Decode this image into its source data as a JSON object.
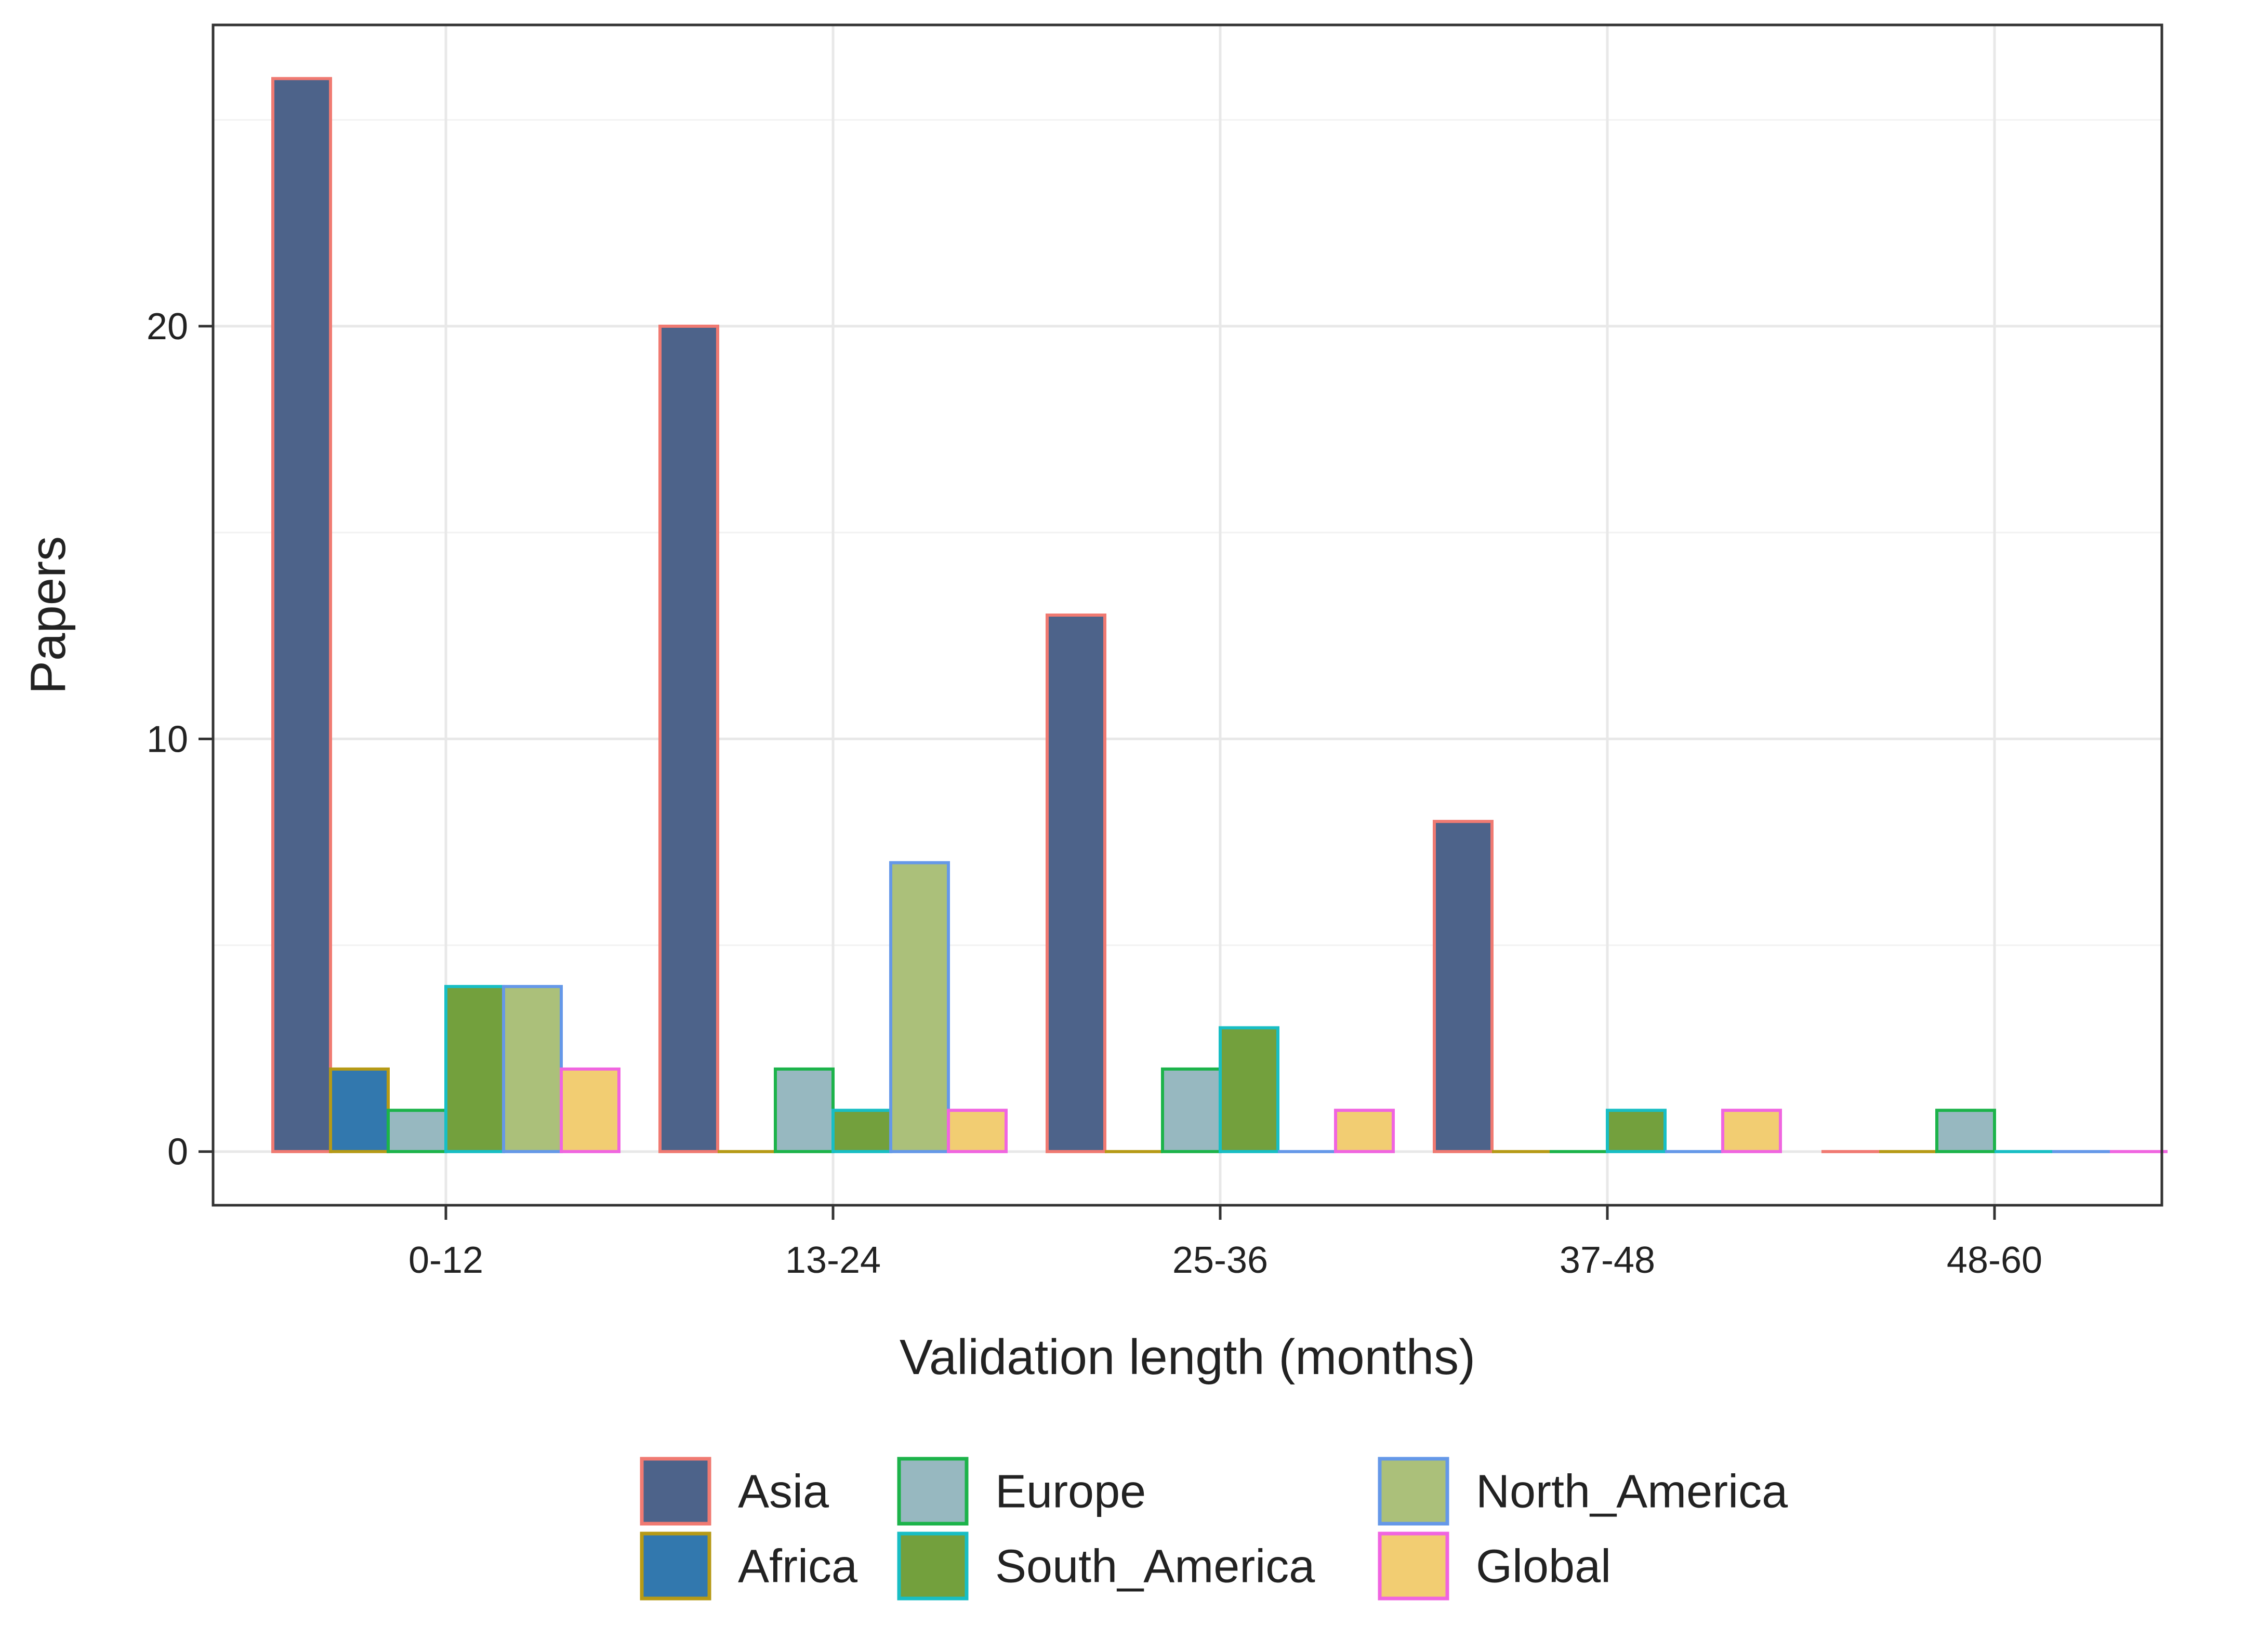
{
  "chart_data": {
    "type": "bar",
    "xlabel": "Validation length (months)",
    "ylabel": "Papers",
    "categories": [
      "0-12",
      "13-24",
      "25-36",
      "37-48",
      "48-60"
    ],
    "ylim": [
      -1.3,
      27.3
    ],
    "yticks": [
      0,
      10,
      20
    ],
    "grid": true,
    "legend_position": "bottom",
    "series": [
      {
        "name": "Asia",
        "fill": "#4d638a",
        "stroke": "#f07a72",
        "values": [
          26,
          20,
          13,
          8,
          0
        ]
      },
      {
        "name": "Africa",
        "fill": "#3278ae",
        "stroke": "#b69a16",
        "values": [
          2,
          0,
          0,
          0,
          0
        ]
      },
      {
        "name": "Europe",
        "fill": "#97b8c0",
        "stroke": "#1cb34a",
        "values": [
          1,
          2,
          2,
          0,
          1
        ]
      },
      {
        "name": "South_America",
        "fill": "#73a03d",
        "stroke": "#18bec4",
        "values": [
          4,
          1,
          3,
          1,
          0
        ]
      },
      {
        "name": "North_America",
        "fill": "#abc07a",
        "stroke": "#6598e8",
        "values": [
          4,
          7,
          0,
          0,
          0
        ]
      },
      {
        "name": "Global",
        "fill": "#f2cd72",
        "stroke": "#f065e0",
        "values": [
          2,
          1,
          1,
          1,
          0
        ]
      }
    ]
  }
}
